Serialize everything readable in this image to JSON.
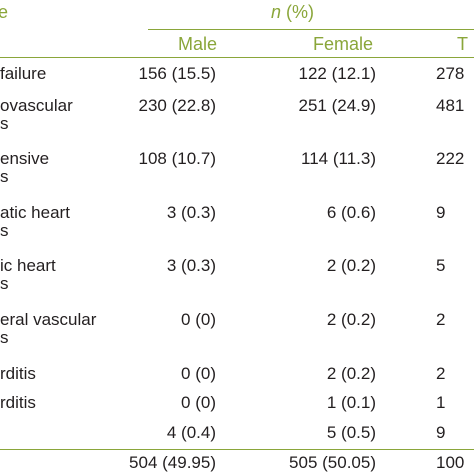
{
  "header": {
    "first_col_fragment": "e",
    "n_label": "n",
    "pct_label": " (%)",
    "columns": [
      "Male",
      "Female",
      "T"
    ]
  },
  "rows": [
    {
      "line1": "failure",
      "line2": "",
      "male": "156 (15.5)",
      "female": "122 (12.1)",
      "total": "278"
    },
    {
      "line1": "ovascular",
      "line2": "s",
      "male": "230 (22.8)",
      "female": "251 (24.9)",
      "total": "481"
    },
    {
      "line1": "ensive",
      "line2": "s",
      "male": "108 (10.7)",
      "female": "114 (11.3)",
      "total": "222"
    },
    {
      "line1": "atic heart",
      "line2": "s",
      "male": "3 (0.3)",
      "female": "6 (0.6)",
      "total": "9"
    },
    {
      "line1": "ic heart",
      "line2": "s",
      "male": "3 (0.3)",
      "female": "2 (0.2)",
      "total": "5"
    },
    {
      "line1": "eral vascular",
      "line2": "s",
      "male": "0 (0)",
      "female": "2 (0.2)",
      "total": "2"
    },
    {
      "line1": "rditis",
      "line2": "",
      "male": "0 (0)",
      "female": "2 (0.2)",
      "total": "2"
    },
    {
      "line1": "rditis",
      "line2": "",
      "male": "0 (0)",
      "female": "1 (0.1)",
      "total": "1"
    },
    {
      "line1": "",
      "line2": "",
      "male": "4 (0.4)",
      "female": "5 (0.5)",
      "total": "9"
    },
    {
      "line1": "",
      "line2": "",
      "male": "504 (49.95)",
      "female": "505 (50.05)",
      "total": "100"
    }
  ],
  "colors": {
    "accent": "#8aa63a",
    "text": "#231f20",
    "background": "#ffffff"
  }
}
